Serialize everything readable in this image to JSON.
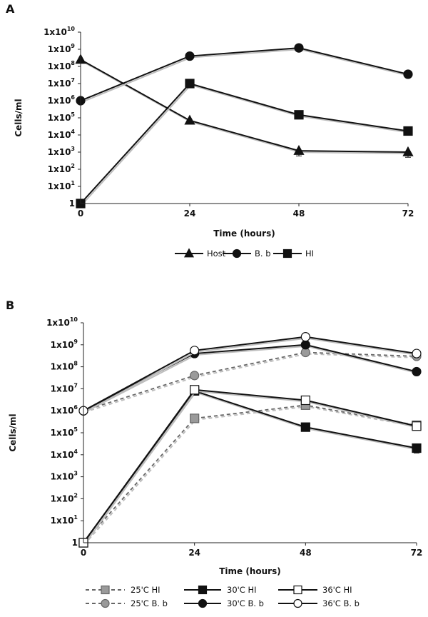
{
  "chart_data": [
    {
      "panel": "A",
      "type": "line",
      "xlabel": "Time (hours)",
      "ylabel": "Cells/ml",
      "x": [
        0,
        24,
        48,
        72
      ],
      "x_tick_labels": [
        "0",
        "24",
        "48",
        "72"
      ],
      "y_scale": "log",
      "ylim": [
        1,
        10000000000
      ],
      "y_ticks": [
        {
          "base": "1",
          "exp": ""
        },
        {
          "base": "1x10",
          "exp": "1"
        },
        {
          "base": "1x10",
          "exp": "2"
        },
        {
          "base": "1x10",
          "exp": "3"
        },
        {
          "base": "1x10",
          "exp": "4"
        },
        {
          "base": "1x10",
          "exp": "5"
        },
        {
          "base": "1x10",
          "exp": "6"
        },
        {
          "base": "1x10",
          "exp": "7"
        },
        {
          "base": "1x10",
          "exp": "8"
        },
        {
          "base": "1x10",
          "exp": "9"
        },
        {
          "base": "1x10",
          "exp": "10"
        }
      ],
      "legend_position": "bottom",
      "series": [
        {
          "name": "Host",
          "marker": "triangle",
          "color": "#111111",
          "dash": "solid",
          "values": [
            250000000,
            70000,
            1200,
            1000
          ],
          "error_low": [
            0,
            0,
            600,
            500
          ]
        },
        {
          "name": "B. b",
          "marker": "circle",
          "color": "#111111",
          "dash": "solid",
          "values": [
            1000000,
            400000000,
            1200000000,
            35000000
          ],
          "error_low": [
            0,
            0,
            0,
            0
          ]
        },
        {
          "name": "HI",
          "marker": "square",
          "color": "#111111",
          "dash": "solid",
          "values": [
            1,
            10000000,
            150000,
            17000
          ],
          "error_low": [
            0,
            0,
            0,
            0
          ]
        }
      ]
    },
    {
      "panel": "B",
      "type": "line",
      "xlabel": "Time (hours)",
      "ylabel": "Cells/ml",
      "x": [
        0,
        24,
        48,
        72
      ],
      "x_tick_labels": [
        "0",
        "24",
        "48",
        "72"
      ],
      "y_scale": "log",
      "ylim": [
        1,
        10000000000
      ],
      "y_ticks": [
        {
          "base": "1",
          "exp": ""
        },
        {
          "base": "1x10",
          "exp": "1"
        },
        {
          "base": "1x10",
          "exp": "2"
        },
        {
          "base": "1x10",
          "exp": "3"
        },
        {
          "base": "1x10",
          "exp": "4"
        },
        {
          "base": "1x10",
          "exp": "5"
        },
        {
          "base": "1x10",
          "exp": "6"
        },
        {
          "base": "1x10",
          "exp": "7"
        },
        {
          "base": "1x10",
          "exp": "8"
        },
        {
          "base": "1x10",
          "exp": "9"
        },
        {
          "base": "1x10",
          "exp": "10"
        }
      ],
      "legend_position": "bottom",
      "series": [
        {
          "name": "25'C HI",
          "marker": "square",
          "color": "#8c8c8c",
          "dash": "dashed",
          "fill": "#9a9a9a",
          "values": [
            1,
            450000,
            1800000,
            220000
          ],
          "error_low": [
            0,
            0,
            0,
            0
          ]
        },
        {
          "name": "30'C HI",
          "marker": "square",
          "color": "#111111",
          "dash": "solid",
          "fill": "#111111",
          "values": [
            1,
            8000000,
            180000,
            20000
          ],
          "error_low": [
            0,
            0,
            60000,
            8000
          ]
        },
        {
          "name": "36'C HI",
          "marker": "square",
          "color": "#111111",
          "dash": "solid",
          "fill": "#ffffff",
          "values": [
            1,
            9000000,
            3000000,
            200000
          ],
          "error_low": [
            0,
            0,
            0,
            60000
          ]
        },
        {
          "name": "25'C B. b",
          "marker": "circle",
          "color": "#8c8c8c",
          "dash": "dashed",
          "fill": "#9a9a9a",
          "values": [
            1000000,
            40000000,
            450000000,
            300000000
          ],
          "error_low": [
            0,
            0,
            0,
            0
          ]
        },
        {
          "name": "30'C B. b",
          "marker": "circle",
          "color": "#111111",
          "dash": "solid",
          "fill": "#111111",
          "values": [
            1000000,
            400000000,
            1000000000,
            60000000
          ],
          "error_low": [
            0,
            0,
            0,
            0
          ]
        },
        {
          "name": "36'C B. b",
          "marker": "circle",
          "color": "#111111",
          "dash": "solid",
          "fill": "#ffffff",
          "values": [
            1000000,
            550000000,
            2300000000,
            400000000
          ],
          "error_low": [
            0,
            0,
            0,
            0
          ]
        }
      ]
    }
  ]
}
